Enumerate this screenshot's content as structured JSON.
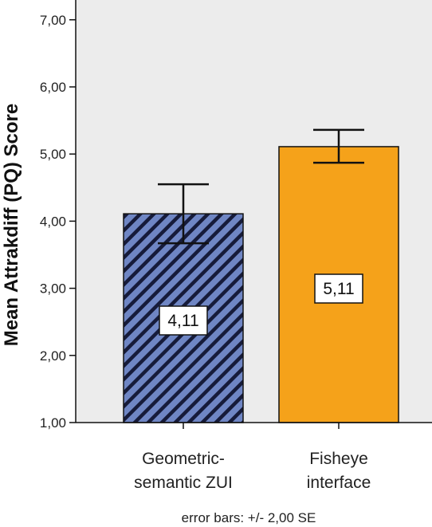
{
  "chart_data": {
    "type": "bar",
    "ylabel": "Mean Attrakdiff (PQ) Score",
    "xlabel": "",
    "ylim": [
      1.0,
      7.2
    ],
    "yticks": [
      "1,00",
      "2,00",
      "3,00",
      "4,00",
      "5,00",
      "6,00",
      "7,00"
    ],
    "ytick_values": [
      1,
      2,
      3,
      4,
      5,
      6,
      7
    ],
    "categories": [
      {
        "lines": [
          "Geometric-",
          "semantic ZUI"
        ]
      },
      {
        "lines": [
          "Fisheye",
          "interface"
        ]
      }
    ],
    "values": [
      4.11,
      5.11
    ],
    "value_labels": [
      "4,11",
      "5,11"
    ],
    "error_low": [
      3.67,
      4.87
    ],
    "error_high": [
      4.55,
      5.36
    ],
    "colors": [
      "#6f86c4",
      "#f5a21a"
    ],
    "patterns": [
      "diagonal-hatch",
      "solid"
    ],
    "note": "error bars: +/- 2,00 SE"
  }
}
